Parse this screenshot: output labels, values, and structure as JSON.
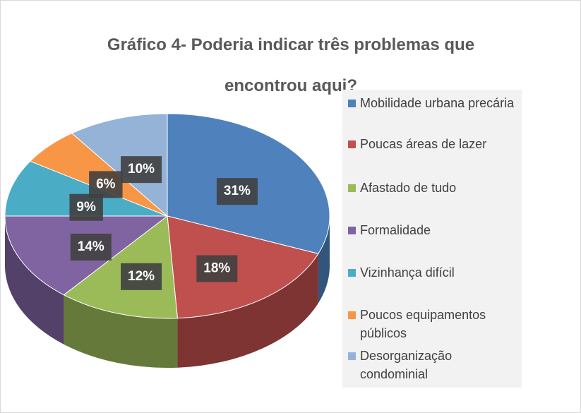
{
  "chart_data": {
    "type": "pie",
    "title": "Gráfico 4- Poderia indicar três problemas que encontrou aqui?",
    "categories": [
      "Mobilidade urbana precária",
      "Poucas áreas de lazer",
      "Afastado de tudo",
      "Formalidade",
      "Vizinhança difícil",
      "Poucos equipamentos públicos",
      "Desorganização condominial"
    ],
    "values": [
      31,
      18,
      12,
      14,
      9,
      6,
      10
    ],
    "value_labels": [
      "31%",
      "18%",
      "12%",
      "14%",
      "9%",
      "6%",
      "10%"
    ],
    "colors": [
      "#4f81bd",
      "#c0504d",
      "#9bbb59",
      "#8064a2",
      "#4bacc6",
      "#f79646",
      "#95b3d7"
    ],
    "legend": "right"
  }
}
